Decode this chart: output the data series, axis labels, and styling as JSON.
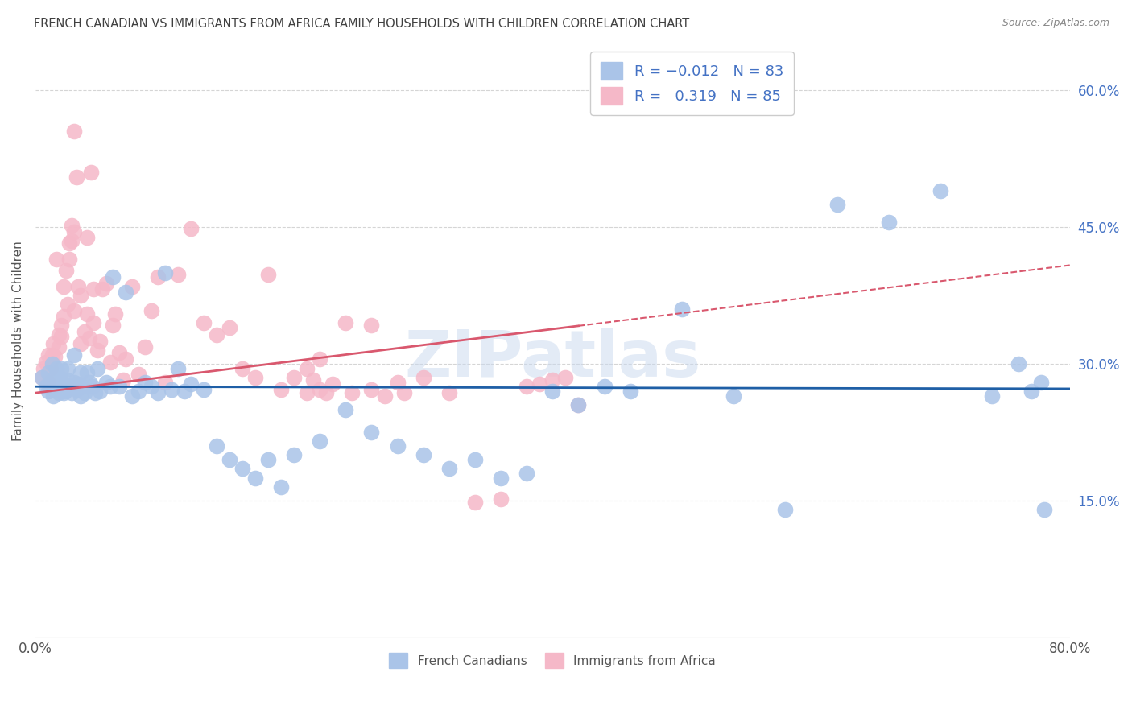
{
  "title": "FRENCH CANADIAN VS IMMIGRANTS FROM AFRICA FAMILY HOUSEHOLDS WITH CHILDREN CORRELATION CHART",
  "source": "Source: ZipAtlas.com",
  "ylabel": "Family Households with Children",
  "xlim": [
    0.0,
    0.8
  ],
  "ylim": [
    0.0,
    0.65
  ],
  "xtick_labels": [
    "0.0%",
    "",
    "",
    "",
    "",
    "",
    "",
    "",
    "80.0%"
  ],
  "ytick_labels_right": [
    "60.0%",
    "45.0%",
    "30.0%",
    "15.0%"
  ],
  "ytick_positions_right": [
    0.6,
    0.45,
    0.3,
    0.15
  ],
  "watermark": "ZIPatlas",
  "blue_color": "#aac4e8",
  "pink_color": "#f5b8c8",
  "blue_line_color": "#1f5fa6",
  "pink_line_color": "#d9586e",
  "background_color": "#ffffff",
  "grid_color": "#d5d5d5",
  "title_color": "#404040",
  "axis_label_color": "#555555",
  "right_tick_color": "#4472c4",
  "blue_intercept": 0.275,
  "blue_slope": -0.003,
  "pink_intercept": 0.268,
  "pink_slope": 0.175,
  "pink_line_end": 0.42,
  "blue_x": [
    0.005,
    0.008,
    0.01,
    0.01,
    0.012,
    0.013,
    0.014,
    0.015,
    0.015,
    0.016,
    0.017,
    0.018,
    0.019,
    0.02,
    0.02,
    0.021,
    0.022,
    0.023,
    0.025,
    0.025,
    0.027,
    0.028,
    0.03,
    0.03,
    0.032,
    0.033,
    0.035,
    0.035,
    0.036,
    0.038,
    0.04,
    0.042,
    0.044,
    0.046,
    0.048,
    0.05,
    0.055,
    0.058,
    0.06,
    0.065,
    0.07,
    0.075,
    0.08,
    0.085,
    0.09,
    0.095,
    0.1,
    0.105,
    0.11,
    0.115,
    0.12,
    0.13,
    0.14,
    0.15,
    0.16,
    0.17,
    0.18,
    0.19,
    0.2,
    0.22,
    0.24,
    0.26,
    0.28,
    0.3,
    0.32,
    0.34,
    0.36,
    0.38,
    0.4,
    0.42,
    0.44,
    0.46,
    0.5,
    0.54,
    0.58,
    0.62,
    0.66,
    0.7,
    0.74,
    0.76,
    0.77,
    0.778,
    0.78
  ],
  "blue_y": [
    0.285,
    0.275,
    0.27,
    0.29,
    0.28,
    0.3,
    0.265,
    0.272,
    0.285,
    0.295,
    0.278,
    0.268,
    0.285,
    0.275,
    0.295,
    0.28,
    0.268,
    0.27,
    0.282,
    0.295,
    0.275,
    0.268,
    0.28,
    0.31,
    0.272,
    0.278,
    0.265,
    0.29,
    0.275,
    0.268,
    0.29,
    0.28,
    0.275,
    0.268,
    0.295,
    0.27,
    0.28,
    0.275,
    0.395,
    0.275,
    0.378,
    0.265,
    0.27,
    0.28,
    0.275,
    0.268,
    0.4,
    0.272,
    0.295,
    0.27,
    0.278,
    0.272,
    0.21,
    0.195,
    0.185,
    0.175,
    0.195,
    0.165,
    0.2,
    0.215,
    0.25,
    0.225,
    0.21,
    0.2,
    0.185,
    0.195,
    0.175,
    0.18,
    0.27,
    0.255,
    0.275,
    0.27,
    0.36,
    0.265,
    0.14,
    0.475,
    0.455,
    0.49,
    0.265,
    0.3,
    0.27,
    0.28,
    0.14
  ],
  "pink_x": [
    0.005,
    0.006,
    0.008,
    0.01,
    0.01,
    0.012,
    0.013,
    0.014,
    0.015,
    0.016,
    0.018,
    0.018,
    0.02,
    0.02,
    0.022,
    0.022,
    0.024,
    0.025,
    0.026,
    0.026,
    0.028,
    0.028,
    0.03,
    0.03,
    0.03,
    0.032,
    0.033,
    0.035,
    0.035,
    0.038,
    0.04,
    0.04,
    0.042,
    0.043,
    0.045,
    0.045,
    0.048,
    0.05,
    0.052,
    0.055,
    0.058,
    0.06,
    0.062,
    0.065,
    0.068,
    0.07,
    0.075,
    0.08,
    0.085,
    0.09,
    0.095,
    0.1,
    0.11,
    0.12,
    0.13,
    0.14,
    0.15,
    0.16,
    0.17,
    0.18,
    0.19,
    0.2,
    0.21,
    0.22,
    0.24,
    0.26,
    0.28,
    0.3,
    0.32,
    0.34,
    0.36,
    0.38,
    0.39,
    0.4,
    0.41,
    0.42,
    0.21,
    0.215,
    0.22,
    0.225,
    0.23,
    0.245,
    0.26,
    0.27,
    0.285
  ],
  "pink_y": [
    0.285,
    0.295,
    0.302,
    0.31,
    0.28,
    0.295,
    0.31,
    0.322,
    0.308,
    0.415,
    0.332,
    0.318,
    0.342,
    0.33,
    0.385,
    0.352,
    0.402,
    0.365,
    0.432,
    0.415,
    0.452,
    0.435,
    0.445,
    0.358,
    0.555,
    0.505,
    0.385,
    0.375,
    0.322,
    0.335,
    0.355,
    0.438,
    0.328,
    0.51,
    0.345,
    0.382,
    0.315,
    0.325,
    0.382,
    0.388,
    0.302,
    0.342,
    0.355,
    0.312,
    0.282,
    0.305,
    0.385,
    0.288,
    0.318,
    0.358,
    0.395,
    0.28,
    0.398,
    0.448,
    0.345,
    0.332,
    0.34,
    0.295,
    0.285,
    0.398,
    0.272,
    0.285,
    0.295,
    0.305,
    0.345,
    0.342,
    0.28,
    0.285,
    0.268,
    0.148,
    0.152,
    0.275,
    0.278,
    0.282,
    0.285,
    0.255,
    0.268,
    0.282,
    0.272,
    0.268,
    0.278,
    0.268,
    0.272,
    0.265,
    0.268
  ]
}
